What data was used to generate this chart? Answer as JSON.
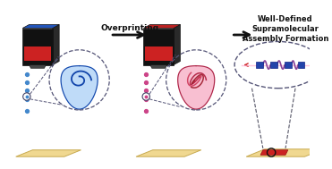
{
  "bg_color": "#ffffff",
  "arrow_color": "#111111",
  "overprinting_label": "Overprinting",
  "result_label": "Well-Defined\nSupramolecular\nAssembly Formation",
  "label_fontsize": 6.5,
  "result_fontsize": 6.0,
  "cartridge1_body_color": "#111111",
  "cartridge1_top_color": "#2255bb",
  "cartridge2_body_color": "#111111",
  "cartridge2_top_color": "#bb2222",
  "cartridge_label_color": "#cc2222",
  "cartridge_label2_color": "#cc2222",
  "substrate_color": "#f0d890",
  "substrate_edge_color": "#c8aa50",
  "droplet1_fill": "#b8d8f8",
  "droplet1_edge": "#1144aa",
  "droplet2_fill": "#f8b8cc",
  "droplet2_edge": "#aa2244",
  "ellipse_edge": "#555577",
  "dot_color1": "#4488cc",
  "dot_color2": "#cc4488",
  "polymer_line_color": "#ddaacc",
  "polymer_zigzag_color": "#884499",
  "polymer_square_color": "#2244aa",
  "polymer_end_color": "#cc2222",
  "substrate3_red_color": "#cc2222",
  "zoom_line_color": "#555566"
}
